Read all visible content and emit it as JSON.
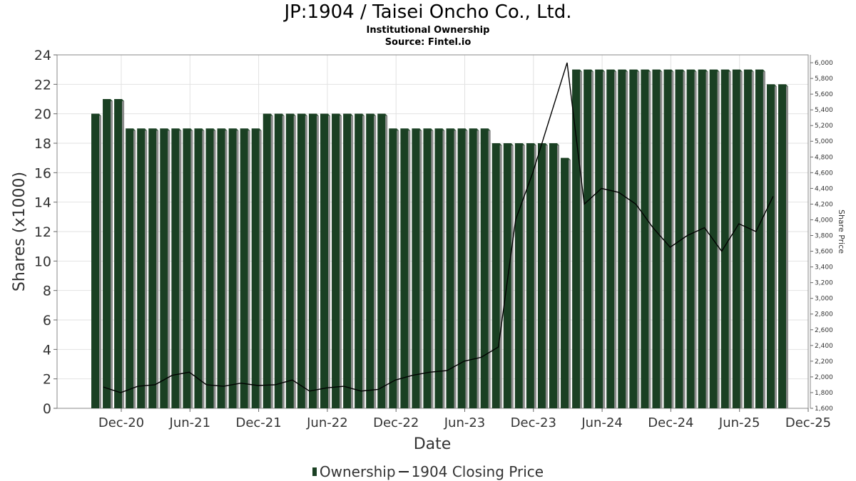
{
  "title": "JP:1904 / Taisei Oncho Co., Ltd.",
  "subtitle1": "Institutional Ownership",
  "subtitle2": "Source: Fintel.io",
  "legend": {
    "ownership": "Ownership",
    "price": "1904 Closing Price"
  },
  "colors": {
    "bar": "#1a4023",
    "bar_side": "#8c8c8c",
    "line": "#000000",
    "grid": "#e2e2e2"
  },
  "chart_data": {
    "type": "bar",
    "xlabel": "Date",
    "ylabel": "Shares (x1000)",
    "y2label": "Share Price",
    "ylim": [
      0,
      24
    ],
    "y_ticks": [
      0,
      2,
      4,
      6,
      8,
      10,
      12,
      14,
      16,
      18,
      20,
      22,
      24
    ],
    "y2lim": [
      1600,
      6100
    ],
    "y2_ticks": [
      "1,600",
      "1,800",
      "2,000",
      "2,200",
      "2,400",
      "2,600",
      "2,800",
      "3,000",
      "3,200",
      "3,400",
      "3,600",
      "3,800",
      "4,000",
      "4,200",
      "4,400",
      "4,600",
      "4,800",
      "5,000",
      "5,200",
      "5,400",
      "5,600",
      "5,800",
      "6,000"
    ],
    "x_ticks": [
      "Dec-20",
      "Jun-21",
      "Dec-21",
      "Jun-22",
      "Dec-22",
      "Jun-23",
      "Dec-23",
      "Jun-24",
      "Dec-24",
      "Jun-25",
      "Dec-25"
    ],
    "grid": true,
    "legend_position": "bottom",
    "series": [
      {
        "name": "Ownership",
        "type": "bar",
        "values": [
          20,
          21,
          21,
          19,
          19,
          19,
          19,
          19,
          19,
          19,
          19,
          19,
          19,
          19,
          19,
          20,
          20,
          20,
          20,
          20,
          20,
          20,
          20,
          20,
          20,
          20,
          19,
          19,
          19,
          19,
          19,
          19,
          19,
          19,
          19,
          18,
          18,
          18,
          18,
          18,
          18,
          17,
          23,
          23,
          23,
          23,
          23,
          23,
          23,
          23,
          23,
          23,
          23,
          23,
          23,
          23,
          23,
          23,
          23,
          22,
          22
        ]
      },
      {
        "name": "1904 Closing Price",
        "type": "line",
        "points": [
          [
            "Dec-20",
            1870
          ],
          [
            "Dec-20",
            1800
          ],
          [
            "Dec-20",
            1880
          ],
          [
            "Dec-20",
            1900
          ],
          [
            "Jun-21",
            2020
          ],
          [
            "Jun-21",
            2060
          ],
          [
            "Jun-21",
            1900
          ],
          [
            "Jun-21",
            1880
          ],
          [
            "Dec-21",
            1920
          ],
          [
            "Dec-21",
            1890
          ],
          [
            "Dec-21",
            1900
          ],
          [
            "Dec-21",
            1960
          ],
          [
            "Jun-22",
            1820
          ],
          [
            "Jun-22",
            1860
          ],
          [
            "Jun-22",
            1880
          ],
          [
            "Jun-22",
            1820
          ],
          [
            "Dec-22",
            1840
          ],
          [
            "Dec-22",
            1960
          ],
          [
            "Dec-22",
            2020
          ],
          [
            "Dec-22",
            2060
          ],
          [
            "Jun-23",
            2080
          ],
          [
            "Jun-23",
            2200
          ],
          [
            "Jun-23",
            2250
          ],
          [
            "Jun-23",
            2380
          ],
          [
            "Dec-23",
            4000
          ],
          [
            "Dec-23",
            4600
          ],
          [
            "Dec-23",
            5300
          ],
          [
            "Dec-23",
            6000
          ],
          [
            "Jun-24",
            4200
          ],
          [
            "Jun-24",
            4400
          ],
          [
            "Jun-24",
            4350
          ],
          [
            "Jun-24",
            4200
          ],
          [
            "Dec-24",
            3900
          ],
          [
            "Dec-24",
            3650
          ],
          [
            "Dec-24",
            3800
          ],
          [
            "Dec-24",
            3900
          ],
          [
            "Jun-25",
            3600
          ],
          [
            "Jun-25",
            3950
          ],
          [
            "Jun-25",
            3850
          ],
          [
            "Jun-25",
            4300
          ]
        ]
      }
    ]
  }
}
